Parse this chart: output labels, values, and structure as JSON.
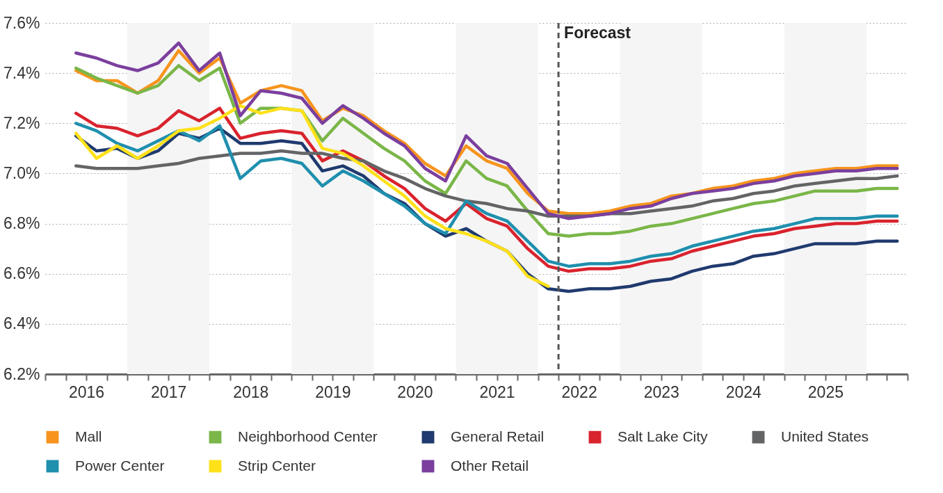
{
  "chart_data": {
    "type": "line",
    "x": [
      2016.375,
      2016.625,
      2016.875,
      2017.125,
      2017.375,
      2017.625,
      2017.875,
      2018.125,
      2018.375,
      2018.625,
      2018.875,
      2019.125,
      2019.375,
      2019.625,
      2019.875,
      2020.125,
      2020.375,
      2020.625,
      2020.875,
      2021.125,
      2021.375,
      2021.625,
      2021.875,
      2022.125,
      2022.375,
      2022.625,
      2022.875,
      2023.125,
      2023.375,
      2023.625,
      2023.875,
      2024.125,
      2024.375,
      2024.625,
      2024.875,
      2025.125,
      2025.375,
      2025.625,
      2025.875,
      2026.125,
      2026.375
    ],
    "series": [
      {
        "name": "Mall",
        "color": "#f7941d",
        "values": [
          7.41,
          7.37,
          7.37,
          7.32,
          7.37,
          7.49,
          7.4,
          7.46,
          7.28,
          7.33,
          7.35,
          7.33,
          7.21,
          7.26,
          7.23,
          7.17,
          7.12,
          7.04,
          6.99,
          7.11,
          7.05,
          7.02,
          6.92,
          6.85,
          6.84,
          6.84,
          6.85,
          6.87,
          6.88,
          6.91,
          6.92,
          6.94,
          6.95,
          6.97,
          6.98,
          7.0,
          7.01,
          7.02,
          7.02,
          7.03,
          7.03
        ]
      },
      {
        "name": "Neighborhood Center",
        "color": "#7ab648",
        "values": [
          7.42,
          7.38,
          7.35,
          7.32,
          7.35,
          7.43,
          7.37,
          7.42,
          7.2,
          7.26,
          7.26,
          7.25,
          7.13,
          7.22,
          7.16,
          7.1,
          7.05,
          6.97,
          6.92,
          7.05,
          6.98,
          6.95,
          6.85,
          6.76,
          6.75,
          6.76,
          6.76,
          6.77,
          6.79,
          6.8,
          6.82,
          6.84,
          6.86,
          6.88,
          6.89,
          6.91,
          6.93,
          6.93,
          6.93,
          6.94,
          6.94
        ]
      },
      {
        "name": "General Retail",
        "color": "#1f3a6e",
        "values": [
          7.15,
          7.09,
          7.1,
          7.06,
          7.09,
          7.16,
          7.14,
          7.18,
          7.12,
          7.12,
          7.13,
          7.12,
          7.01,
          7.03,
          6.99,
          6.92,
          6.88,
          6.8,
          6.75,
          6.78,
          6.73,
          6.69,
          6.6,
          6.54,
          6.53,
          6.54,
          6.54,
          6.55,
          6.57,
          6.58,
          6.61,
          6.63,
          6.64,
          6.67,
          6.68,
          6.7,
          6.72,
          6.72,
          6.72,
          6.73,
          6.73
        ]
      },
      {
        "name": "Salt Lake City",
        "color": "#d9232d",
        "values": [
          7.24,
          7.19,
          7.18,
          7.15,
          7.18,
          7.25,
          7.21,
          7.26,
          7.14,
          7.16,
          7.17,
          7.16,
          7.05,
          7.09,
          7.05,
          6.99,
          6.94,
          6.86,
          6.81,
          6.88,
          6.82,
          6.79,
          6.7,
          6.63,
          6.61,
          6.62,
          6.62,
          6.63,
          6.65,
          6.66,
          6.69,
          6.71,
          6.73,
          6.75,
          6.76,
          6.78,
          6.79,
          6.8,
          6.8,
          6.81,
          6.81
        ]
      },
      {
        "name": "United States",
        "color": "#636466",
        "values": [
          7.03,
          7.02,
          7.02,
          7.02,
          7.03,
          7.04,
          7.06,
          7.07,
          7.08,
          7.08,
          7.09,
          7.08,
          7.08,
          7.06,
          7.05,
          7.01,
          6.98,
          6.94,
          6.91,
          6.89,
          6.88,
          6.86,
          6.85,
          6.83,
          6.83,
          6.83,
          6.84,
          6.84,
          6.85,
          6.86,
          6.87,
          6.89,
          6.9,
          6.92,
          6.93,
          6.95,
          6.96,
          6.97,
          6.98,
          6.98,
          6.99
        ]
      },
      {
        "name": "Power Center",
        "color": "#1f8fae",
        "values": [
          7.2,
          7.17,
          7.12,
          7.09,
          7.13,
          7.17,
          7.13,
          7.19,
          6.98,
          7.05,
          7.06,
          7.04,
          6.95,
          7.01,
          6.97,
          6.92,
          6.87,
          6.8,
          6.76,
          6.89,
          6.84,
          6.81,
          6.73,
          6.65,
          6.63,
          6.64,
          6.64,
          6.65,
          6.67,
          6.68,
          6.71,
          6.73,
          6.75,
          6.77,
          6.78,
          6.8,
          6.82,
          6.82,
          6.82,
          6.83,
          6.83
        ]
      },
      {
        "name": "Strip Center",
        "color": "#ffe11a",
        "values": [
          7.16,
          7.06,
          7.11,
          7.06,
          7.11,
          7.17,
          7.18,
          7.22,
          7.27,
          7.24,
          7.26,
          7.25,
          7.1,
          7.08,
          7.03,
          6.97,
          6.91,
          6.83,
          6.78,
          6.76,
          6.73,
          6.69,
          6.59,
          6.55,
          null,
          null,
          null,
          null,
          null,
          null,
          null,
          null,
          null,
          null,
          null,
          null,
          null,
          null,
          null,
          null,
          null
        ]
      },
      {
        "name": "Other Retail",
        "color": "#7b3f9e",
        "values": [
          7.48,
          7.46,
          7.43,
          7.41,
          7.44,
          7.52,
          7.41,
          7.48,
          7.23,
          7.33,
          7.32,
          7.3,
          7.2,
          7.27,
          7.22,
          7.16,
          7.11,
          7.02,
          6.97,
          7.15,
          7.07,
          7.04,
          6.94,
          6.84,
          6.82,
          6.83,
          6.84,
          6.86,
          6.87,
          6.9,
          6.92,
          6.93,
          6.94,
          6.96,
          6.97,
          6.99,
          7.0,
          7.01,
          7.01,
          7.02,
          7.02
        ]
      }
    ],
    "xlim": [
      2016,
      2026.5
    ],
    "xticks": [
      {
        "value": 2016,
        "label": null
      },
      {
        "value": 2016.25,
        "label": null
      },
      {
        "value": 2016.5,
        "label": "2016"
      },
      {
        "value": 2016.75,
        "label": null
      },
      {
        "value": 2017,
        "label": null
      },
      {
        "value": 2017.25,
        "label": null
      },
      {
        "value": 2017.5,
        "label": "2017"
      },
      {
        "value": 2017.75,
        "label": null
      },
      {
        "value": 2018,
        "label": null
      },
      {
        "value": 2018.25,
        "label": null
      },
      {
        "value": 2018.5,
        "label": "2018"
      },
      {
        "value": 2018.75,
        "label": null
      },
      {
        "value": 2019,
        "label": null
      },
      {
        "value": 2019.25,
        "label": null
      },
      {
        "value": 2019.5,
        "label": "2019"
      },
      {
        "value": 2019.75,
        "label": null
      },
      {
        "value": 2020,
        "label": null
      },
      {
        "value": 2020.25,
        "label": null
      },
      {
        "value": 2020.5,
        "label": "2020"
      },
      {
        "value": 2020.75,
        "label": null
      },
      {
        "value": 2021,
        "label": null
      },
      {
        "value": 2021.25,
        "label": null
      },
      {
        "value": 2021.5,
        "label": "2021"
      },
      {
        "value": 2021.75,
        "label": null
      },
      {
        "value": 2022,
        "label": null
      },
      {
        "value": 2022.25,
        "label": null
      },
      {
        "value": 2022.5,
        "label": "2022"
      },
      {
        "value": 2022.75,
        "label": null
      },
      {
        "value": 2023,
        "label": null
      },
      {
        "value": 2023.25,
        "label": null
      },
      {
        "value": 2023.5,
        "label": "2023"
      },
      {
        "value": 2023.75,
        "label": null
      },
      {
        "value": 2024,
        "label": null
      },
      {
        "value": 2024.25,
        "label": null
      },
      {
        "value": 2024.5,
        "label": "2024"
      },
      {
        "value": 2024.75,
        "label": null
      },
      {
        "value": 2025,
        "label": null
      },
      {
        "value": 2025.25,
        "label": null
      },
      {
        "value": 2025.5,
        "label": "2025"
      },
      {
        "value": 2025.75,
        "label": null
      },
      {
        "value": 2026,
        "label": null
      },
      {
        "value": 2026.25,
        "label": null
      },
      {
        "value": 2026.5,
        "label": null
      }
    ],
    "ylim": [
      6.2,
      7.6
    ],
    "yticks": [
      {
        "value": 6.2,
        "label": "6.2%"
      },
      {
        "value": 6.4,
        "label": "6.4%"
      },
      {
        "value": 6.6,
        "label": "6.6%"
      },
      {
        "value": 6.8,
        "label": "6.8%"
      },
      {
        "value": 7.0,
        "label": "7.0%"
      },
      {
        "value": 7.2,
        "label": "7.2%"
      },
      {
        "value": 7.4,
        "label": "7.4%"
      },
      {
        "value": 7.6,
        "label": "7.6%"
      }
    ],
    "grid": "y",
    "legend": "bottom",
    "line_style": "solid",
    "marker": "none",
    "ref_lines": [
      {
        "axis": "x",
        "value": 2022.25,
        "label": "Forecast",
        "color": "#555555",
        "line_style": "dashed"
      }
    ],
    "bands": [
      {
        "axis": "x",
        "from": 2017,
        "to": 2018,
        "color": "#f5f5f5"
      },
      {
        "axis": "x",
        "from": 2019,
        "to": 2020,
        "color": "#f5f5f5"
      },
      {
        "axis": "x",
        "from": 2021,
        "to": 2022,
        "color": "#f5f5f5"
      },
      {
        "axis": "x",
        "from": 2023,
        "to": 2024,
        "color": "#f5f5f5"
      },
      {
        "axis": "x",
        "from": 2025,
        "to": 2026,
        "color": "#f5f5f5"
      }
    ]
  }
}
